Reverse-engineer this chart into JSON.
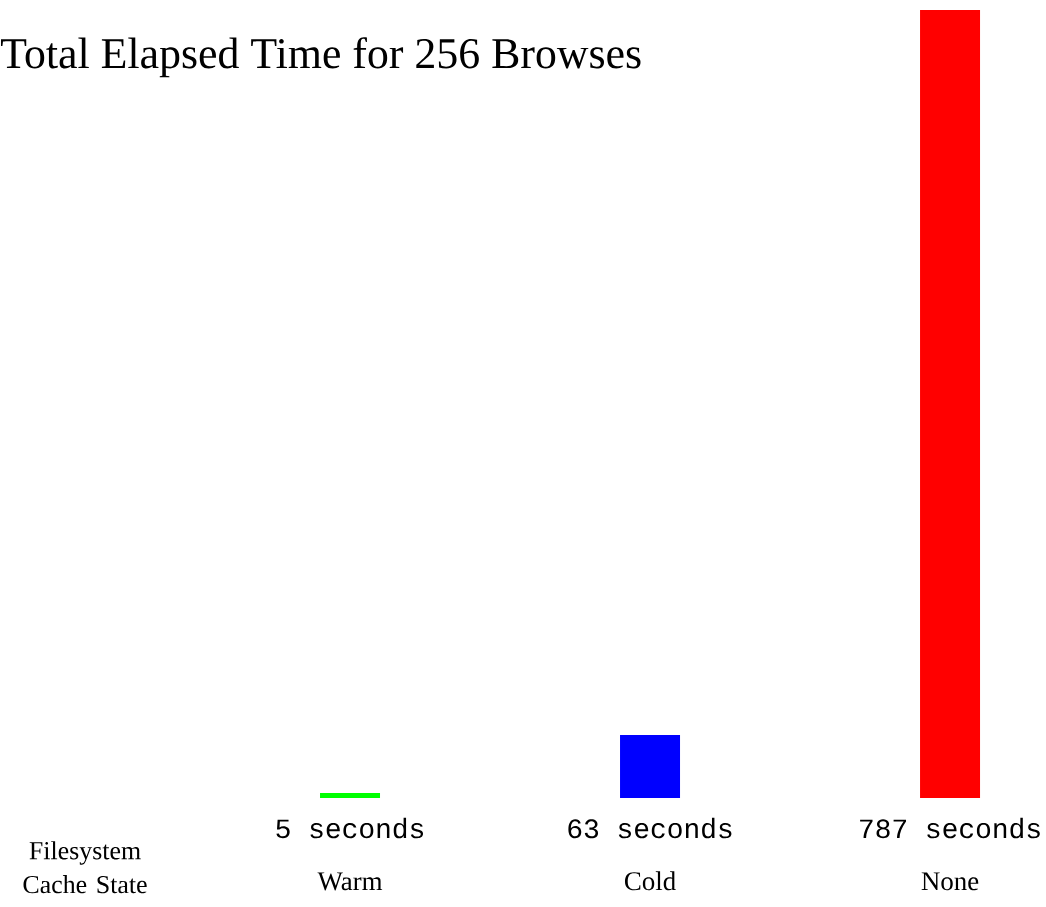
{
  "chart_data": {
    "type": "bar",
    "title": "Total Elapsed Time for 256 Browses",
    "xlabel": "Filesystem Cache State",
    "categories": [
      "Warm",
      "Cold",
      "None"
    ],
    "values": [
      5,
      63,
      787
    ],
    "colors": [
      "#00ff00",
      "#0000ff",
      "#ff0000"
    ],
    "value_labels": [
      "5 seconds",
      "63 seconds",
      "787 seconds"
    ]
  }
}
